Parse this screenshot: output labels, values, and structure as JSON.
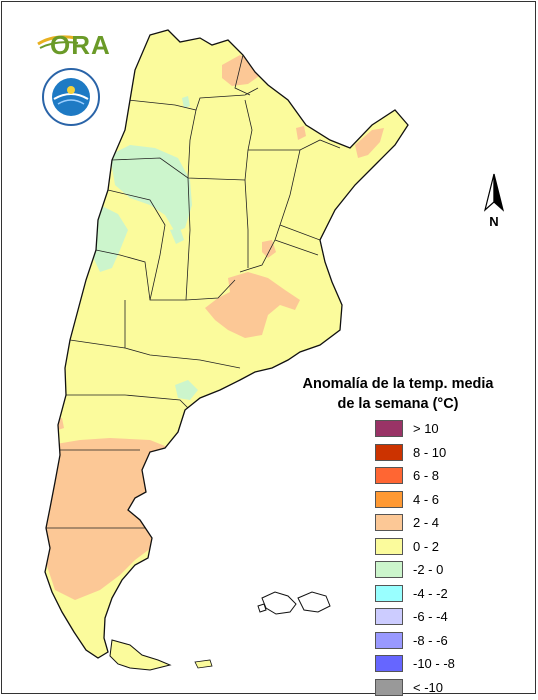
{
  "header": {
    "org_logo_text": "ORA",
    "agency_seal_name": "SMN seal"
  },
  "compass": {
    "label": "N",
    "icon": "north-arrow-icon"
  },
  "legend": {
    "title_line1": "Anomalía de la temp. media",
    "title_line2": "de la semana (°C)",
    "items": [
      {
        "label": "> 10",
        "color": "#993366"
      },
      {
        "label": "8 - 10",
        "color": "#cc3300"
      },
      {
        "label": "6 - 8",
        "color": "#ff6633"
      },
      {
        "label": "4 - 6",
        "color": "#ff9933"
      },
      {
        "label": "2 - 4",
        "color": "#fcc896"
      },
      {
        "label": "0 - 2",
        "color": "#fbfb9c"
      },
      {
        "label": "-2 - 0",
        "color": "#ccf5cc"
      },
      {
        "label": "-4 - -2",
        "color": "#99ffff"
      },
      {
        "label": "-6 - -4",
        "color": "#ccccff"
      },
      {
        "label": "-8 - -6",
        "color": "#9999ff"
      },
      {
        "label": "-10 - -8",
        "color": "#6666ff"
      },
      {
        "label": "< -10",
        "color": "#999999"
      }
    ]
  },
  "map": {
    "base_class": "0 - 2",
    "zones": [
      {
        "name": "zone-warm-northwest",
        "class": "2 - 4"
      },
      {
        "name": "zone-warm-northeast",
        "class": "2 - 4"
      },
      {
        "name": "zone-warm-pampas",
        "class": "2 - 4"
      },
      {
        "name": "zone-warm-patagonia",
        "class": "2 - 4"
      },
      {
        "name": "zone-cool-cuyo",
        "class": "-2 - 0"
      },
      {
        "name": "zone-cool-andes",
        "class": "-2 - 0"
      }
    ]
  }
}
